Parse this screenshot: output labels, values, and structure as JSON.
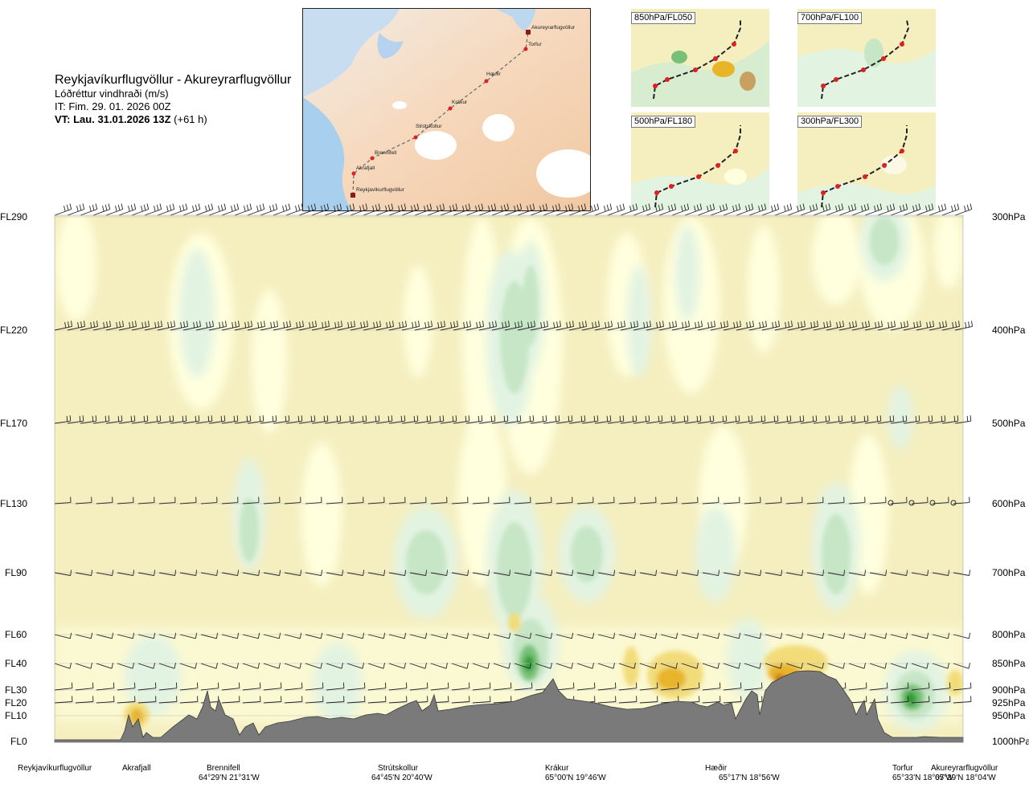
{
  "header": {
    "route": "Reykjavíkurflugvöllur - Akureyrarflugvöllur",
    "parameter": "Lóðréttur vindhraði (m/s)",
    "issue_time": "IT: Fim. 29. 01. 2026 00Z",
    "valid_prefix": "VT: Lau. 31.01.2026 13Z",
    "valid_suffix": " (+61 h)"
  },
  "map": {
    "waypoints": [
      "Akureyrarflugvöllur",
      "Torfur",
      "Hæðir",
      "Krákur",
      "Strútskollur",
      "Brennifell",
      "Akrafjall",
      "Reykjavíkurflugvöllur"
    ]
  },
  "panels": [
    {
      "label": "850hPa/FL050"
    },
    {
      "label": "700hPa/FL100"
    },
    {
      "label": "500hPa/FL180"
    },
    {
      "label": "300hPa/FL300"
    }
  ],
  "colors": {
    "background_field": "#f5efc0",
    "weak_up": "#ffffde",
    "green_light": "#e2f3e2",
    "green_mid": "#c6e6c6",
    "green_strong": "#78c078",
    "green_core": "#2e9c34",
    "orange_light": "#f2dc7a",
    "orange_mid": "#e8b42a",
    "orange_core": "#c8781a",
    "terrain": "#7a7a7a"
  },
  "chart_data": {
    "type": "cross-section",
    "levels": [
      {
        "fl": "FL290",
        "hpa": "300hPa"
      },
      {
        "fl": "FL220",
        "hpa": "400hPa"
      },
      {
        "fl": "FL170",
        "hpa": "500hPa"
      },
      {
        "fl": "FL130",
        "hpa": "600hPa"
      },
      {
        "fl": "FL90",
        "hpa": "700hPa"
      },
      {
        "fl": "FL60",
        "hpa": "800hPa"
      },
      {
        "fl": "FL40",
        "hpa": "850hPa"
      },
      {
        "fl": "FL30",
        "hpa": "900hPa"
      },
      {
        "fl": "FL20",
        "hpa": "925hPa"
      },
      {
        "fl": "FL10",
        "hpa": "950hPa"
      },
      {
        "fl": "FL0",
        "hpa": "1000hPa"
      }
    ],
    "locations": [
      {
        "name": "Reykjavíkurflugvöllur",
        "coords": ""
      },
      {
        "name": "Akrafjall",
        "coords": ""
      },
      {
        "name": "Brennifell",
        "coords": "64°29'N 21°31'W"
      },
      {
        "name": "Strútskollur",
        "coords": "64°45'N 20°40'W"
      },
      {
        "name": "Krákur",
        "coords": "65°00'N 19°46'W"
      },
      {
        "name": "Hæðir",
        "coords": "65°17'N 18°56'W"
      },
      {
        "name": "Torfur",
        "coords": "65°33'N 18°07'W"
      },
      {
        "name": "Akureyrarflugvöllur",
        "coords": "65°39'N 18°04'W"
      }
    ]
  }
}
